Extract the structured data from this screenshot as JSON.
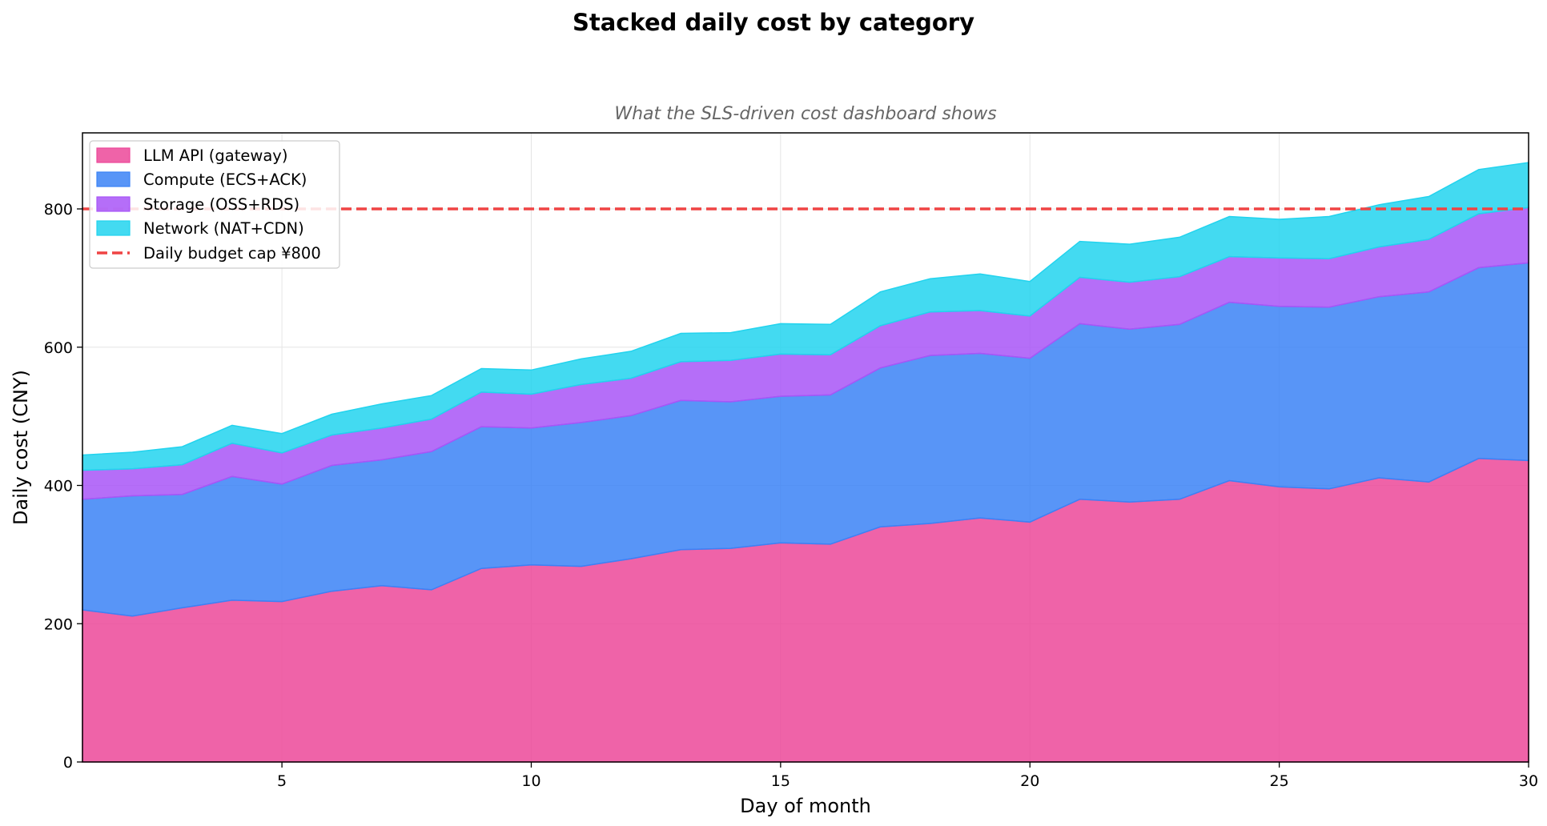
{
  "chart_data": {
    "type": "area",
    "stacked": true,
    "title": "Stacked daily cost by category",
    "subtitle": "What the SLS-driven cost dashboard shows",
    "xlabel": "Day of month",
    "ylabel": "Daily cost (CNY)",
    "xlim": [
      1,
      30
    ],
    "ylim": [
      0,
      910
    ],
    "xticks": [
      5,
      10,
      15,
      20,
      25,
      30
    ],
    "yticks": [
      0,
      200,
      400,
      600,
      800
    ],
    "grid": true,
    "legend_position": "top-left",
    "x": [
      1,
      2,
      3,
      4,
      5,
      6,
      7,
      8,
      9,
      10,
      11,
      12,
      13,
      14,
      15,
      16,
      17,
      18,
      19,
      20,
      21,
      22,
      23,
      24,
      25,
      26,
      27,
      28,
      29,
      30
    ],
    "series": [
      {
        "name": "LLM API (gateway)",
        "color": "#ec4899",
        "values": [
          220,
          211,
          223,
          234,
          232,
          247,
          255,
          249,
          280,
          285,
          283,
          294,
          307,
          309,
          317,
          315,
          340,
          345,
          353,
          347,
          380,
          376,
          380,
          407,
          398,
          395,
          411,
          405,
          439,
          436
        ]
      },
      {
        "name": "Compute (ECS+ACK)",
        "color": "#3b82f6",
        "values": [
          160,
          174,
          164,
          179,
          170,
          182,
          182,
          200,
          205,
          198,
          208,
          207,
          216,
          212,
          212,
          216,
          230,
          243,
          238,
          237,
          254,
          250,
          253,
          258,
          261,
          263,
          262,
          275,
          276,
          286
        ]
      },
      {
        "name": "Storage (OSS+RDS)",
        "color": "#a855f7",
        "values": [
          42,
          39,
          43,
          48,
          45,
          44,
          46,
          47,
          50,
          49,
          55,
          54,
          56,
          60,
          61,
          58,
          61,
          63,
          62,
          61,
          67,
          68,
          69,
          66,
          70,
          70,
          72,
          76,
          78,
          80
        ]
      },
      {
        "name": "Network (NAT+CDN)",
        "color": "#22d3ee",
        "values": [
          22,
          24,
          26,
          26,
          28,
          30,
          35,
          34,
          34,
          35,
          37,
          39,
          41,
          40,
          44,
          44,
          49,
          48,
          53,
          50,
          52,
          55,
          57,
          58,
          56,
          61,
          61,
          62,
          64,
          65
        ]
      }
    ],
    "reference_line": {
      "name": "Daily budget cap ¥800",
      "value": 800,
      "color": "#ef4444",
      "style": "dashed"
    }
  }
}
